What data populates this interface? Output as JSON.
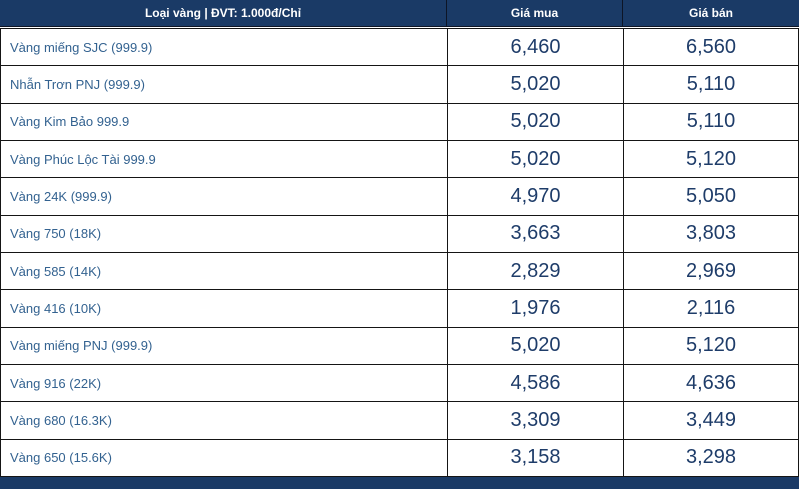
{
  "colors": {
    "header_bg": "#1a3a66",
    "header_text": "#ffffff",
    "row_bg": "#ffffff",
    "label_text": "#336290",
    "price_text": "#1e3c69",
    "grid_border": "#151515",
    "footer_bar": "#1a3a66"
  },
  "table": {
    "headers": {
      "type": "Loại vàng | ĐVT: 1.000đ/Chỉ",
      "buy": "Giá mua",
      "sell": "Giá bán"
    },
    "rows": [
      {
        "label": "Vàng miếng SJC (999.9)",
        "buy": "6,460",
        "sell": "6,560"
      },
      {
        "label": "Nhẫn Trơn PNJ (999.9)",
        "buy": "5,020",
        "sell": "5,110"
      },
      {
        "label": "Vàng Kim Bảo 999.9",
        "buy": "5,020",
        "sell": "5,110"
      },
      {
        "label": "Vàng Phúc Lộc Tài 999.9",
        "buy": "5,020",
        "sell": "5,120"
      },
      {
        "label": "Vàng 24K (999.9)",
        "buy": "4,970",
        "sell": "5,050"
      },
      {
        "label": "Vàng 750 (18K)",
        "buy": "3,663",
        "sell": "3,803"
      },
      {
        "label": "Vàng 585 (14K)",
        "buy": "2,829",
        "sell": "2,969"
      },
      {
        "label": "Vàng 416 (10K)",
        "buy": "1,976",
        "sell": "2,116"
      },
      {
        "label": "Vàng miếng PNJ (999.9)",
        "buy": "5,020",
        "sell": "5,120"
      },
      {
        "label": "Vàng 916 (22K)",
        "buy": "4,586",
        "sell": "4,636"
      },
      {
        "label": "Vàng 680 (16.3K)",
        "buy": "3,309",
        "sell": "3,449"
      },
      {
        "label": "Vàng 650 (15.6K)",
        "buy": "3,158",
        "sell": "3,298"
      }
    ]
  }
}
